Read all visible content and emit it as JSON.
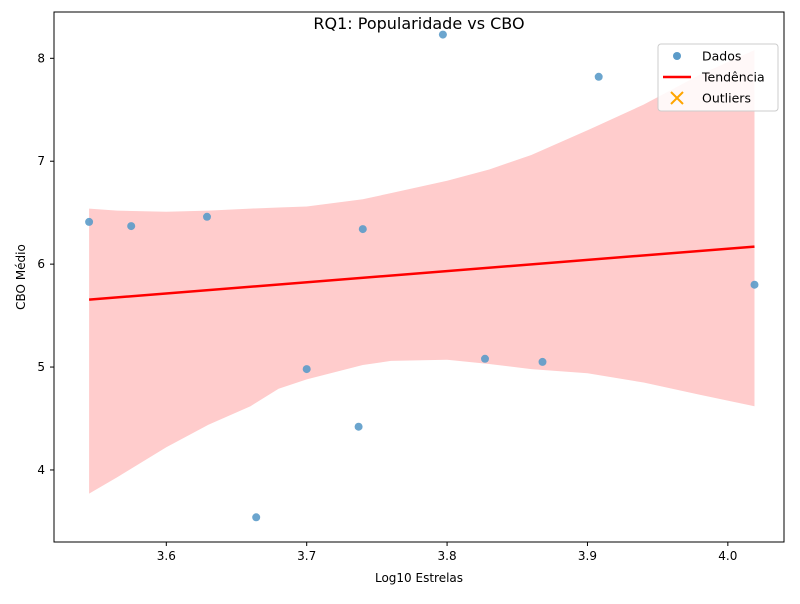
{
  "chart_data": {
    "type": "scatter",
    "title": "RQ1: Popularidade vs CBO",
    "xlabel": "Log10 Estrelas",
    "ylabel": "CBO Médio",
    "xlim": [
      3.52,
      4.04
    ],
    "ylim": [
      3.3,
      8.45
    ],
    "xticks": [
      3.6,
      3.7,
      3.8,
      3.9,
      4.0
    ],
    "xtick_labels": [
      "3.6",
      "3.7",
      "3.8",
      "3.9",
      "4.0"
    ],
    "yticks": [
      4,
      5,
      6,
      7,
      8
    ],
    "ytick_labels": [
      "4",
      "5",
      "6",
      "7",
      "8"
    ],
    "grid": false,
    "legend_position": "top-right",
    "legend": [
      {
        "label": "Dados",
        "marker": "circle",
        "color": "#5b9bc9"
      },
      {
        "label": "Tendência",
        "marker": "line",
        "color": "#ff0000"
      },
      {
        "label": "Outliers",
        "marker": "x",
        "color": "#ffa500"
      }
    ],
    "series": [
      {
        "name": "Dados",
        "type": "scatter",
        "color": "#5b9bc9",
        "points": [
          {
            "x": 3.545,
            "y": 6.41
          },
          {
            "x": 3.575,
            "y": 6.37
          },
          {
            "x": 3.629,
            "y": 6.46
          },
          {
            "x": 3.664,
            "y": 3.54
          },
          {
            "x": 3.7,
            "y": 4.98
          },
          {
            "x": 3.737,
            "y": 4.42
          },
          {
            "x": 3.74,
            "y": 6.34
          },
          {
            "x": 3.797,
            "y": 8.23
          },
          {
            "x": 3.827,
            "y": 5.08
          },
          {
            "x": 3.868,
            "y": 5.05
          },
          {
            "x": 3.908,
            "y": 7.82
          },
          {
            "x": 4.019,
            "y": 5.8
          }
        ]
      },
      {
        "name": "Tendência",
        "type": "line",
        "color": "#ff0000",
        "points": [
          {
            "x": 3.545,
            "y": 5.655
          },
          {
            "x": 4.019,
            "y": 6.17
          }
        ]
      },
      {
        "name": "Outliers",
        "type": "scatter",
        "color": "#ffa500",
        "points": []
      }
    ],
    "confidence_band": {
      "color": "#ffcccc",
      "x": [
        3.545,
        3.565,
        3.6,
        3.63,
        3.66,
        3.68,
        3.7,
        3.74,
        3.76,
        3.8,
        3.83,
        3.86,
        3.9,
        3.94,
        3.98,
        4.019
      ],
      "upper": [
        6.54,
        6.52,
        6.51,
        6.52,
        6.54,
        6.55,
        6.56,
        6.63,
        6.69,
        6.81,
        6.92,
        7.06,
        7.3,
        7.55,
        7.84,
        8.08
      ],
      "lower": [
        3.77,
        3.93,
        4.22,
        4.44,
        4.62,
        4.79,
        4.88,
        5.02,
        5.06,
        5.07,
        5.03,
        4.98,
        4.94,
        4.85,
        4.73,
        4.62
      ]
    }
  }
}
